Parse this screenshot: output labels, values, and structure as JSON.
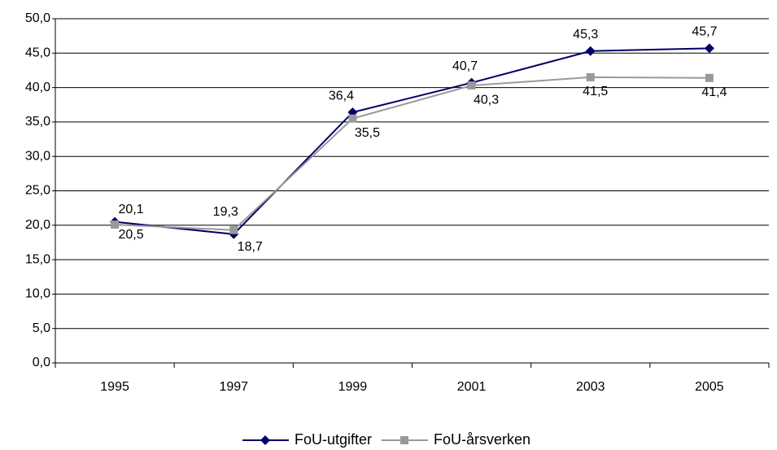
{
  "chart_data": {
    "type": "line",
    "categories": [
      "1995",
      "1997",
      "1999",
      "2001",
      "2003",
      "2005"
    ],
    "series": [
      {
        "name": "FoU-utgifter",
        "color": "#000066",
        "marker": "diamond",
        "values": [
          20.5,
          18.7,
          36.4,
          40.7,
          45.3,
          45.7
        ],
        "value_labels": [
          "20,5",
          "18,7",
          "36,4",
          "40,7",
          "45,3",
          "45,7"
        ]
      },
      {
        "name": "FoU-årsverken",
        "color": "#999999",
        "marker": "square",
        "values": [
          20.1,
          19.3,
          35.5,
          40.3,
          41.5,
          41.4
        ],
        "value_labels": [
          "20,1",
          "19,3",
          "35,5",
          "40,3",
          "41,5",
          "41,4"
        ]
      }
    ],
    "ylim": [
      0,
      50
    ],
    "yticks": [
      {
        "value": 0,
        "label": "0,0"
      },
      {
        "value": 5,
        "label": "5,0"
      },
      {
        "value": 10,
        "label": "10,0"
      },
      {
        "value": 15,
        "label": "15,0"
      },
      {
        "value": 20,
        "label": "20,0"
      },
      {
        "value": 25,
        "label": "25,0"
      },
      {
        "value": 30,
        "label": "30,0"
      },
      {
        "value": 35,
        "label": "35,0"
      },
      {
        "value": 40,
        "label": "40,0"
      },
      {
        "value": 45,
        "label": "45,0"
      },
      {
        "value": 50,
        "label": "50,0"
      }
    ],
    "grid": true,
    "legend": "bottom"
  }
}
